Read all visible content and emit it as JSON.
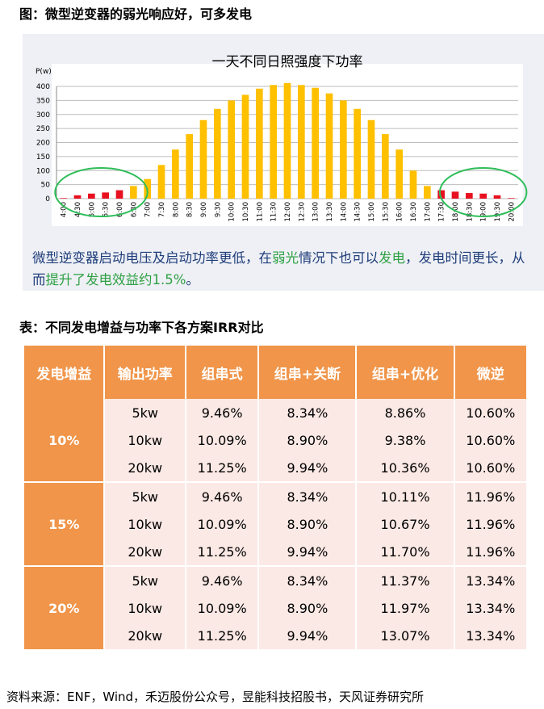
{
  "figure_title": "图：微型逆变器的弱光响应好，可多发电",
  "note": {
    "part1": "微型逆变器启动电压及启动功率更低，在",
    "weak": "弱光",
    "part2": "情况下也可以",
    "gen": "发电",
    "part3": "，发电时间更长，从而",
    "improve": "提升了发电效益约1.5%",
    "part4": "。"
  },
  "chart_data": {
    "type": "bar",
    "title": "一天不同日照强度下功率",
    "ylabel": "P(w)",
    "ylim": [
      0,
      400
    ],
    "yticks": [
      0,
      50,
      100,
      150,
      200,
      250,
      300,
      350,
      400
    ],
    "grid": true,
    "categories": [
      "4:00",
      "4:30",
      "5:00",
      "5:30",
      "6:00",
      "6:30",
      "7:00",
      "7:30",
      "8:00",
      "8:30",
      "9:00",
      "9:30",
      "10:00",
      "10:30",
      "11:00",
      "11:30",
      "12:00",
      "12:30",
      "13:00",
      "13:30",
      "14:00",
      "14:30",
      "15:00",
      "15:30",
      "16:00",
      "16:30",
      "17:00",
      "17:30",
      "18:00",
      "18:30",
      "19:00",
      "19:30",
      "20:00"
    ],
    "values": [
      2,
      12,
      18,
      22,
      30,
      45,
      70,
      120,
      175,
      230,
      280,
      320,
      350,
      370,
      392,
      405,
      412,
      405,
      395,
      375,
      350,
      320,
      280,
      230,
      175,
      100,
      45,
      30,
      25,
      20,
      18,
      12,
      2
    ],
    "colors": [
      "#e8101f",
      "#e8101f",
      "#e8101f",
      "#e8101f",
      "#e8101f",
      "#ffc000",
      "#ffc000",
      "#ffc000",
      "#ffc000",
      "#ffc000",
      "#ffc000",
      "#ffc000",
      "#ffc000",
      "#ffc000",
      "#ffc000",
      "#ffc000",
      "#ffc000",
      "#ffc000",
      "#ffc000",
      "#ffc000",
      "#ffc000",
      "#ffc000",
      "#ffc000",
      "#ffc000",
      "#ffc000",
      "#ffc000",
      "#ffc000",
      "#e8101f",
      "#e8101f",
      "#e8101f",
      "#e8101f",
      "#e8101f",
      "#e8101f"
    ],
    "highlight_color": "#2ebd59"
  },
  "table_title": "表：不同发电增益与功率下各方案IRR对比",
  "table": {
    "headers": [
      "发电增益",
      "输出功率",
      "组串式",
      "组串+关断",
      "组串+优化",
      "微逆"
    ],
    "groups": [
      {
        "gain": "10%",
        "rows": [
          [
            "5kw",
            "9.46%",
            "8.34%",
            "8.86%",
            "10.60%"
          ],
          [
            "10kw",
            "10.09%",
            "8.90%",
            "9.38%",
            "10.60%"
          ],
          [
            "20kw",
            "11.25%",
            "9.94%",
            "10.36%",
            "10.60%"
          ]
        ]
      },
      {
        "gain": "15%",
        "rows": [
          [
            "5kw",
            "9.46%",
            "8.34%",
            "10.11%",
            "11.96%"
          ],
          [
            "10kw",
            "10.09%",
            "8.90%",
            "10.67%",
            "11.96%"
          ],
          [
            "20kw",
            "11.25%",
            "9.94%",
            "11.70%",
            "11.96%"
          ]
        ]
      },
      {
        "gain": "20%",
        "rows": [
          [
            "5kw",
            "9.46%",
            "8.34%",
            "11.37%",
            "13.34%"
          ],
          [
            "10kw",
            "10.09%",
            "8.90%",
            "11.97%",
            "13.34%"
          ],
          [
            "20kw",
            "11.25%",
            "9.94%",
            "13.07%",
            "13.34%"
          ]
        ]
      }
    ]
  },
  "source": "资料来源：ENF，Wind，禾迈股份公众号，昱能科技招股书，天风证券研究所"
}
